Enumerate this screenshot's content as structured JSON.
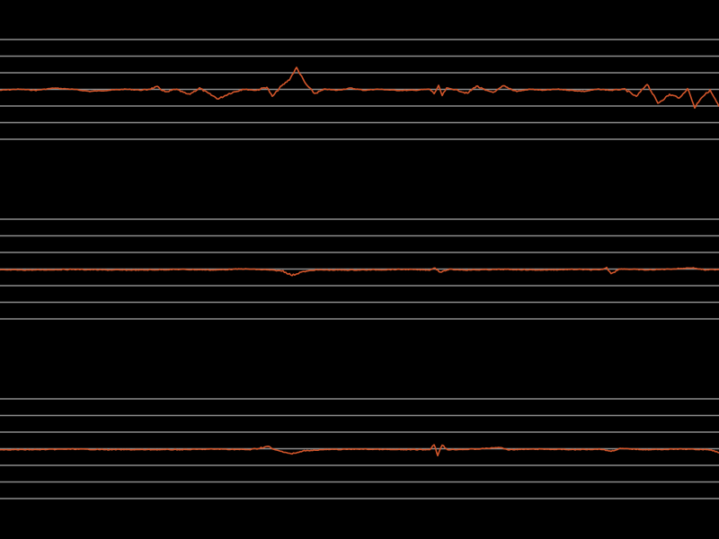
{
  "colors": {
    "background": "#000000",
    "gridline": "#8c8c8c",
    "trace": "#d2552a"
  },
  "chart_data": [
    {
      "type": "line",
      "title": "",
      "grid": true,
      "gridline_count": 7,
      "series": [
        {
          "points": [
            [
              0,
              0.0
            ],
            [
              20,
              0.1
            ],
            [
              40,
              0.0
            ],
            [
              60,
              0.2
            ],
            [
              80,
              0.1
            ],
            [
              100,
              -0.1
            ],
            [
              120,
              0.0
            ],
            [
              140,
              0.1
            ],
            [
              160,
              0.0
            ],
            [
              175,
              0.3
            ],
            [
              185,
              -0.2
            ],
            [
              195,
              0.1
            ],
            [
              210,
              -0.4
            ],
            [
              222,
              0.2
            ],
            [
              232,
              -0.3
            ],
            [
              243,
              -0.8
            ],
            [
              255,
              -0.3
            ],
            [
              270,
              0.1
            ],
            [
              285,
              0.0
            ],
            [
              297,
              0.3
            ],
            [
              303,
              -0.6
            ],
            [
              312,
              0.3
            ],
            [
              322,
              1.0
            ],
            [
              330,
              2.1
            ],
            [
              340,
              0.6
            ],
            [
              350,
              -0.3
            ],
            [
              362,
              0.1
            ],
            [
              375,
              0.0
            ],
            [
              390,
              0.2
            ],
            [
              405,
              0.0
            ],
            [
              420,
              0.1
            ],
            [
              440,
              0.0
            ],
            [
              460,
              0.0
            ],
            [
              478,
              0.1
            ],
            [
              483,
              -0.3
            ],
            [
              488,
              0.4
            ],
            [
              492,
              -0.5
            ],
            [
              497,
              0.2
            ],
            [
              510,
              0.0
            ],
            [
              520,
              -0.3
            ],
            [
              530,
              0.4
            ],
            [
              540,
              0.0
            ],
            [
              550,
              -0.2
            ],
            [
              560,
              0.4
            ],
            [
              575,
              -0.1
            ],
            [
              590,
              0.1
            ],
            [
              605,
              0.0
            ],
            [
              620,
              0.1
            ],
            [
              635,
              0.0
            ],
            [
              650,
              -0.1
            ],
            [
              665,
              0.1
            ],
            [
              680,
              0.0
            ],
            [
              695,
              0.1
            ],
            [
              708,
              -0.6
            ],
            [
              720,
              0.6
            ],
            [
              732,
              -1.2
            ],
            [
              745,
              -0.4
            ],
            [
              757,
              -0.7
            ],
            [
              765,
              0.2
            ],
            [
              773,
              -1.6
            ],
            [
              780,
              -0.7
            ],
            [
              790,
              0.0
            ],
            [
              800,
              -1.5
            ]
          ]
        }
      ]
    },
    {
      "type": "line",
      "title": "",
      "grid": true,
      "gridline_count": 7,
      "series": [
        {
          "points": [
            [
              0,
              0.0
            ],
            [
              40,
              0.0
            ],
            [
              80,
              0.05
            ],
            [
              120,
              0.0
            ],
            [
              160,
              0.0
            ],
            [
              200,
              0.05
            ],
            [
              240,
              0.0
            ],
            [
              270,
              0.1
            ],
            [
              300,
              0.0
            ],
            [
              315,
              -0.1
            ],
            [
              325,
              -0.5
            ],
            [
              335,
              -0.2
            ],
            [
              350,
              0.0
            ],
            [
              400,
              0.0
            ],
            [
              450,
              0.05
            ],
            [
              478,
              0.0
            ],
            [
              484,
              0.2
            ],
            [
              490,
              -0.2
            ],
            [
              500,
              0.05
            ],
            [
              520,
              0.0
            ],
            [
              560,
              0.05
            ],
            [
              600,
              0.0
            ],
            [
              640,
              0.05
            ],
            [
              668,
              0.0
            ],
            [
              675,
              0.2
            ],
            [
              680,
              -0.3
            ],
            [
              690,
              0.1
            ],
            [
              720,
              0.0
            ],
            [
              750,
              0.1
            ],
            [
              770,
              0.2
            ],
            [
              785,
              0.0
            ],
            [
              800,
              0.05
            ]
          ]
        }
      ]
    },
    {
      "type": "line",
      "title": "",
      "grid": true,
      "gridline_count": 7,
      "series": [
        {
          "points": [
            [
              0,
              0.0
            ],
            [
              40,
              0.0
            ],
            [
              80,
              0.05
            ],
            [
              120,
              0.0
            ],
            [
              160,
              0.0
            ],
            [
              200,
              0.0
            ],
            [
              240,
              0.05
            ],
            [
              280,
              0.0
            ],
            [
              298,
              0.3
            ],
            [
              305,
              0.0
            ],
            [
              315,
              -0.2
            ],
            [
              325,
              -0.4
            ],
            [
              340,
              -0.1
            ],
            [
              360,
              0.0
            ],
            [
              400,
              0.05
            ],
            [
              440,
              0.0
            ],
            [
              478,
              0.0
            ],
            [
              483,
              0.5
            ],
            [
              487,
              -0.5
            ],
            [
              492,
              0.4
            ],
            [
              498,
              0.0
            ],
            [
              530,
              0.05
            ],
            [
              556,
              0.2
            ],
            [
              565,
              0.0
            ],
            [
              600,
              0.05
            ],
            [
              640,
              0.0
            ],
            [
              668,
              0.05
            ],
            [
              680,
              -0.15
            ],
            [
              690,
              0.1
            ],
            [
              720,
              0.0
            ],
            [
              760,
              0.05
            ],
            [
              790,
              0.0
            ],
            [
              800,
              -0.3
            ]
          ]
        }
      ]
    }
  ]
}
